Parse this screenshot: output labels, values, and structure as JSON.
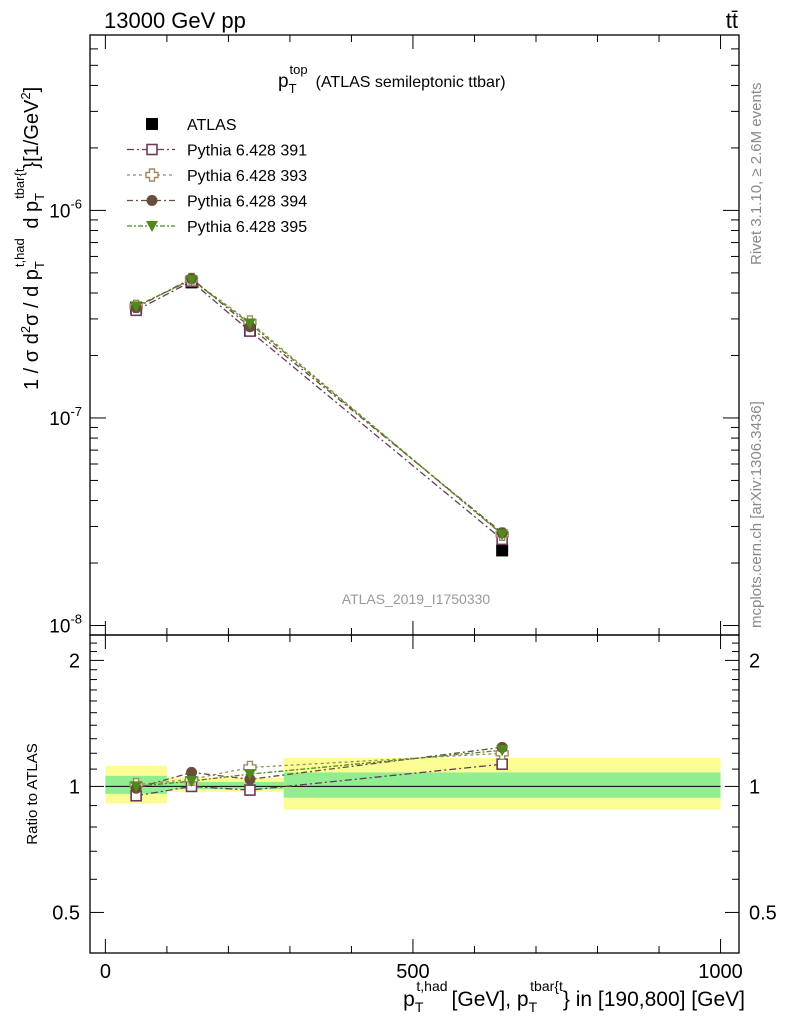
{
  "header": {
    "left": "13000 GeV pp",
    "right": "tt̄"
  },
  "side_labels": {
    "rivet": "Rivet 3.1.10, ≥ 2.6M events",
    "mcplots": "mcplots.cern.ch [arXiv:1306.3436]"
  },
  "chart_data": [
    {
      "type": "line",
      "title": "p_T^top (ATLAS semileptonic ttbar)",
      "title_main": "p",
      "title_sub": "T",
      "title_sup": "top",
      "title_rest": "(ATLAS semileptonic ttbar)",
      "watermark": "ATLAS_2019_I1750330",
      "ylabel": "1 / σ d²σ / d p_T^{t,had} d p_T^{tbar{t}} [1/GeV²]",
      "ylog": true,
      "ylim": [
        9e-09,
        7e-06
      ],
      "xlim": [
        -25,
        1030
      ],
      "yticks": [
        "10^-8",
        "10^-7",
        "10^-6"
      ],
      "legend_position": "top-left",
      "x": [
        50,
        140,
        235,
        645
      ],
      "series": [
        {
          "name": "ATLAS",
          "color": "#000000",
          "marker": "square-filled",
          "values": [
            3.4e-07,
            4.5e-07,
            2.65e-07,
            2.3e-08
          ]
        },
        {
          "name": "Pythia 6.428 391",
          "color": "#6b3a5a",
          "marker": "square-open",
          "values": [
            3.3e-07,
            4.55e-07,
            2.62e-07,
            2.6e-08
          ]
        },
        {
          "name": "Pythia 6.428 393",
          "color": "#a08860",
          "marker": "cross-open",
          "values": [
            3.45e-07,
            4.65e-07,
            2.9e-07,
            2.75e-08
          ]
        },
        {
          "name": "Pythia 6.428 394",
          "color": "#6a4e3a",
          "marker": "circle-filled",
          "values": [
            3.4e-07,
            4.7e-07,
            2.75e-07,
            2.8e-08
          ]
        },
        {
          "name": "Pythia 6.428 395",
          "color": "#4f8a1e",
          "marker": "triangle-down-filled",
          "values": [
            3.45e-07,
            4.62e-07,
            2.85e-07,
            2.75e-08
          ]
        }
      ]
    },
    {
      "type": "line",
      "ylabel": "Ratio to ATLAS",
      "xlabel": "p_T^{t,had} [GeV], p_T^{tbar{t}} in [190,800] [GeV]",
      "xlabel_p1": "p",
      "xlabel_sub1": "T",
      "xlabel_sup1": "t,had",
      "xlabel_mid": "[GeV], p",
      "xlabel_sub2": "T",
      "xlabel_sup2": "tbar{t",
      "xlabel_end": "} in [190,800] [GeV]",
      "ylim": [
        0.4,
        2.3
      ],
      "xlim": [
        -25,
        1030
      ],
      "yticks": [
        "0.5",
        "1",
        "2"
      ],
      "xticks": [
        "0",
        "500",
        "1000"
      ],
      "bands": [
        {
          "x": [
            0,
            100
          ],
          "yellow": [
            0.91,
            1.12
          ],
          "green": [
            0.96,
            1.06
          ]
        },
        {
          "x": [
            100,
            290
          ],
          "yellow": [
            0.97,
            1.05
          ],
          "green": [
            0.985,
            1.025
          ]
        },
        {
          "x": [
            290,
            1000
          ],
          "yellow": [
            0.88,
            1.17
          ],
          "green": [
            0.94,
            1.08
          ]
        }
      ],
      "x": [
        50,
        140,
        235,
        645
      ],
      "series": [
        {
          "name": "Pythia 6.428 391",
          "values": [
            0.95,
            1.0,
            0.98,
            1.13
          ]
        },
        {
          "name": "Pythia 6.428 393",
          "values": [
            1.01,
            1.04,
            1.11,
            1.2
          ]
        },
        {
          "name": "Pythia 6.428 394",
          "values": [
            0.99,
            1.08,
            1.04,
            1.24
          ]
        },
        {
          "name": "Pythia 6.428 395",
          "values": [
            1.0,
            1.03,
            1.07,
            1.22
          ]
        }
      ]
    }
  ]
}
